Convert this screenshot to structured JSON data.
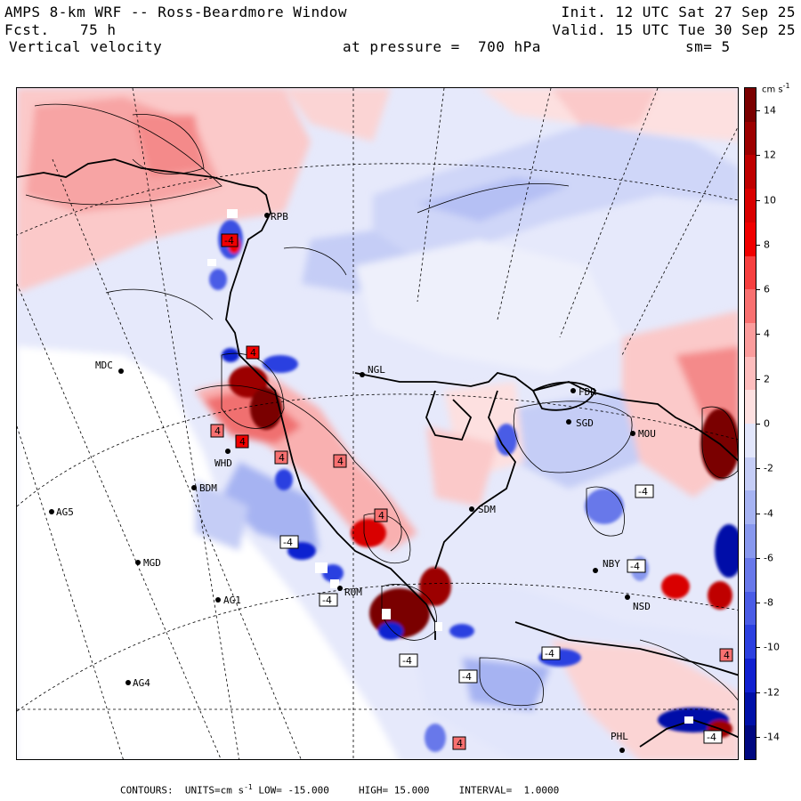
{
  "header": {
    "title": "AMPS 8-km WRF -- Ross-Beardmore Window",
    "forecast_label": "Fcst.",
    "forecast_hours": "75 h",
    "variable": "Vertical velocity",
    "init": "Init. 12 UTC Sat 27 Sep 25",
    "valid": "Valid. 15 UTC Tue 30 Sep 25",
    "pressure": "at pressure =  700 hPa",
    "smoothing": "sm= 5"
  },
  "colorbar": {
    "units_label": "cm s",
    "units_exp": "-1",
    "ticks": [
      "14",
      "12",
      "10",
      "8",
      "6",
      "4",
      "2",
      "0",
      "-2",
      "-4",
      "-6",
      "-8",
      "-10",
      "-12",
      "-14"
    ],
    "tick_values": [
      14,
      12,
      10,
      8,
      6,
      4,
      2,
      0,
      -2,
      -4,
      -6,
      -8,
      -10,
      -12,
      -14
    ],
    "range": [
      -15,
      15
    ],
    "colors_high": [
      "#7a0000",
      "#9c0000",
      "#bf0000",
      "#d90000",
      "#f00000",
      "#f64040",
      "#f87070",
      "#fb9c9c",
      "#fdbdbd",
      "#fde0e0"
    ],
    "colors_low": [
      "#e2e6fb",
      "#c5cdf6",
      "#a6b3f2",
      "#8898ee",
      "#6878ea",
      "#4a5ce6",
      "#2c40e0",
      "#1020d0",
      "#0010a8",
      "#000880"
    ]
  },
  "stations": [
    {
      "code": "MDC"
    },
    {
      "code": "NGL"
    },
    {
      "code": "FDR"
    },
    {
      "code": "SGD"
    },
    {
      "code": "MOU"
    },
    {
      "code": "SDM"
    },
    {
      "code": "NBY"
    },
    {
      "code": "NSD"
    },
    {
      "code": "AG5"
    },
    {
      "code": "MGD"
    },
    {
      "code": "AG1"
    },
    {
      "code": "AG4"
    },
    {
      "code": "PHL"
    },
    {
      "code": "WHD"
    },
    {
      "code": "BDM"
    },
    {
      "code": "RPB"
    },
    {
      "code": "ROM"
    }
  ],
  "contour_labels": [
    "-4",
    "4",
    "4",
    "4",
    "4",
    "4",
    "-4",
    "-4",
    "-4",
    "-4",
    "-4",
    "-4",
    "-4",
    "4",
    "4",
    "-4",
    "4"
  ],
  "footer": {
    "contours_label": "CONTOURS:",
    "units_label": "UNITS=cm s",
    "units_exp": "-1",
    "low_label": "LOW=",
    "low_value": "-15.000",
    "high_label": "HIGH=",
    "high_value": "15.000",
    "interval_label": "INTERVAL=",
    "interval_value": "1.0000"
  }
}
